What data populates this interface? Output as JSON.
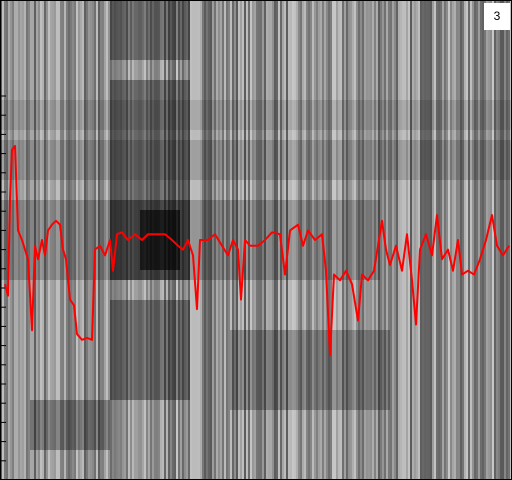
{
  "chart_data": {
    "type": "line",
    "annotation": "3",
    "x": [
      5,
      8,
      10,
      12,
      15,
      18,
      22,
      25,
      28,
      32,
      35,
      38,
      42,
      45,
      48,
      52,
      56,
      60,
      63,
      66,
      70,
      74,
      77,
      82,
      87,
      92,
      95,
      100,
      105,
      110,
      113,
      117,
      122,
      128,
      135,
      142,
      148,
      155,
      165,
      172,
      178,
      183,
      188,
      193,
      197,
      200,
      208,
      215,
      222,
      228,
      233,
      238,
      241,
      245,
      250,
      258,
      265,
      272,
      280,
      285,
      290,
      298,
      303,
      308,
      315,
      322,
      326,
      330,
      334,
      340,
      346,
      352,
      358,
      362,
      368,
      374,
      378,
      382,
      386,
      390,
      396,
      402,
      407,
      412,
      416,
      420,
      426,
      432,
      437,
      442,
      448,
      453,
      458,
      462,
      468,
      474,
      480,
      486,
      492,
      497,
      503,
      509
    ],
    "series": [
      {
        "color": "#ff0000",
        "values": [
          10.2,
          9.6,
          14.6,
          17.2,
          17.4,
          13.0,
          12.5,
          12.0,
          11.5,
          7.8,
          12.2,
          11.5,
          12.5,
          11.7,
          13.0,
          13.3,
          13.5,
          13.3,
          12.0,
          11.5,
          9.4,
          9.1,
          7.6,
          7.3,
          7.4,
          7.3,
          12.0,
          12.2,
          11.7,
          12.5,
          10.9,
          12.8,
          12.9,
          12.5,
          12.8,
          12.5,
          12.8,
          12.8,
          12.8,
          12.5,
          12.2,
          12.0,
          12.5,
          11.7,
          8.9,
          12.5,
          12.5,
          12.8,
          12.2,
          11.7,
          12.5,
          12.0,
          9.4,
          12.5,
          12.2,
          12.2,
          12.5,
          12.9,
          12.8,
          10.7,
          13.0,
          13.3,
          12.2,
          13.0,
          12.5,
          12.8,
          10.9,
          6.5,
          10.7,
          10.4,
          10.9,
          10.2,
          8.3,
          10.7,
          10.4,
          10.9,
          12.2,
          13.5,
          12.0,
          11.2,
          12.2,
          10.9,
          12.8,
          10.4,
          8.1,
          12.0,
          12.8,
          11.7,
          13.8,
          11.5,
          12.0,
          10.9,
          12.5,
          10.7,
          10.9,
          10.7,
          11.5,
          12.5,
          13.8,
          12.2,
          11.7,
          12.2
        ]
      }
    ],
    "xlim": [
      0,
      512
    ],
    "ylim": [
      0,
      25
    ],
    "yticks": [
      1,
      2,
      3,
      4,
      5,
      6,
      7,
      8,
      9,
      10,
      11,
      12,
      13,
      14,
      15,
      16,
      17,
      18,
      19,
      20
    ]
  }
}
